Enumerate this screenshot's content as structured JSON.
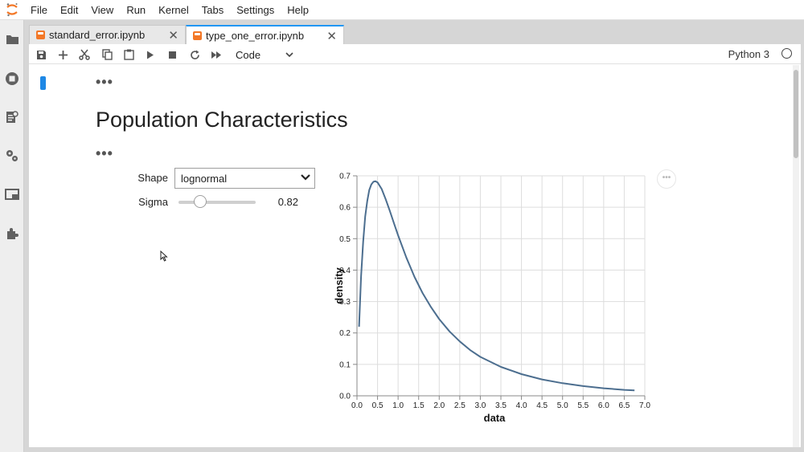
{
  "menubar": {
    "items": [
      "File",
      "Edit",
      "View",
      "Run",
      "Kernel",
      "Tabs",
      "Settings",
      "Help"
    ]
  },
  "sidebar": {
    "icons": [
      "folder-icon",
      "running-icon",
      "commands-icon",
      "property-inspector-icon",
      "tabs-icon",
      "extensions-icon"
    ]
  },
  "tabs": [
    {
      "label": "standard_error.ipynb",
      "active": false
    },
    {
      "label": "type_one_error.ipynb",
      "active": true
    }
  ],
  "toolbar": {
    "cell_type": "Code",
    "kernel": "Python 3"
  },
  "notebook": {
    "heading": "Population Characteristics",
    "widgets": {
      "shape_label": "Shape",
      "shape_value": "lognormal",
      "sigma_label": "Sigma",
      "sigma_value": "0.82",
      "sigma_fraction": 0.28
    }
  },
  "chart_data": {
    "type": "line",
    "xlabel": "data",
    "ylabel": "density",
    "xlim": [
      0,
      7
    ],
    "ylim": [
      0,
      0.7
    ],
    "xticks": [
      "0.0",
      "0.5",
      "1.0",
      "1.5",
      "2.0",
      "2.5",
      "3.0",
      "3.5",
      "4.0",
      "4.5",
      "5.0",
      "5.5",
      "6.0",
      "6.5",
      "7.0"
    ],
    "yticks": [
      "0.0",
      "0.1",
      "0.2",
      "0.3",
      "0.4",
      "0.5",
      "0.6",
      "0.7"
    ],
    "grid": true,
    "line_color": "#4c6e8f",
    "x": [
      0.05,
      0.1,
      0.15,
      0.2,
      0.25,
      0.3,
      0.35,
      0.4,
      0.45,
      0.5,
      0.6,
      0.7,
      0.8,
      0.9,
      1.0,
      1.2,
      1.4,
      1.6,
      1.8,
      2.0,
      2.25,
      2.5,
      2.75,
      3.0,
      3.5,
      4.0,
      4.5,
      5.0,
      5.5,
      6.0,
      6.5,
      6.75
    ],
    "y": [
      0.22,
      0.38,
      0.49,
      0.57,
      0.62,
      0.655,
      0.673,
      0.681,
      0.683,
      0.679,
      0.658,
      0.625,
      0.588,
      0.549,
      0.511,
      0.44,
      0.378,
      0.326,
      0.282,
      0.244,
      0.205,
      0.173,
      0.146,
      0.124,
      0.092,
      0.069,
      0.052,
      0.04,
      0.031,
      0.024,
      0.019,
      0.017
    ]
  }
}
